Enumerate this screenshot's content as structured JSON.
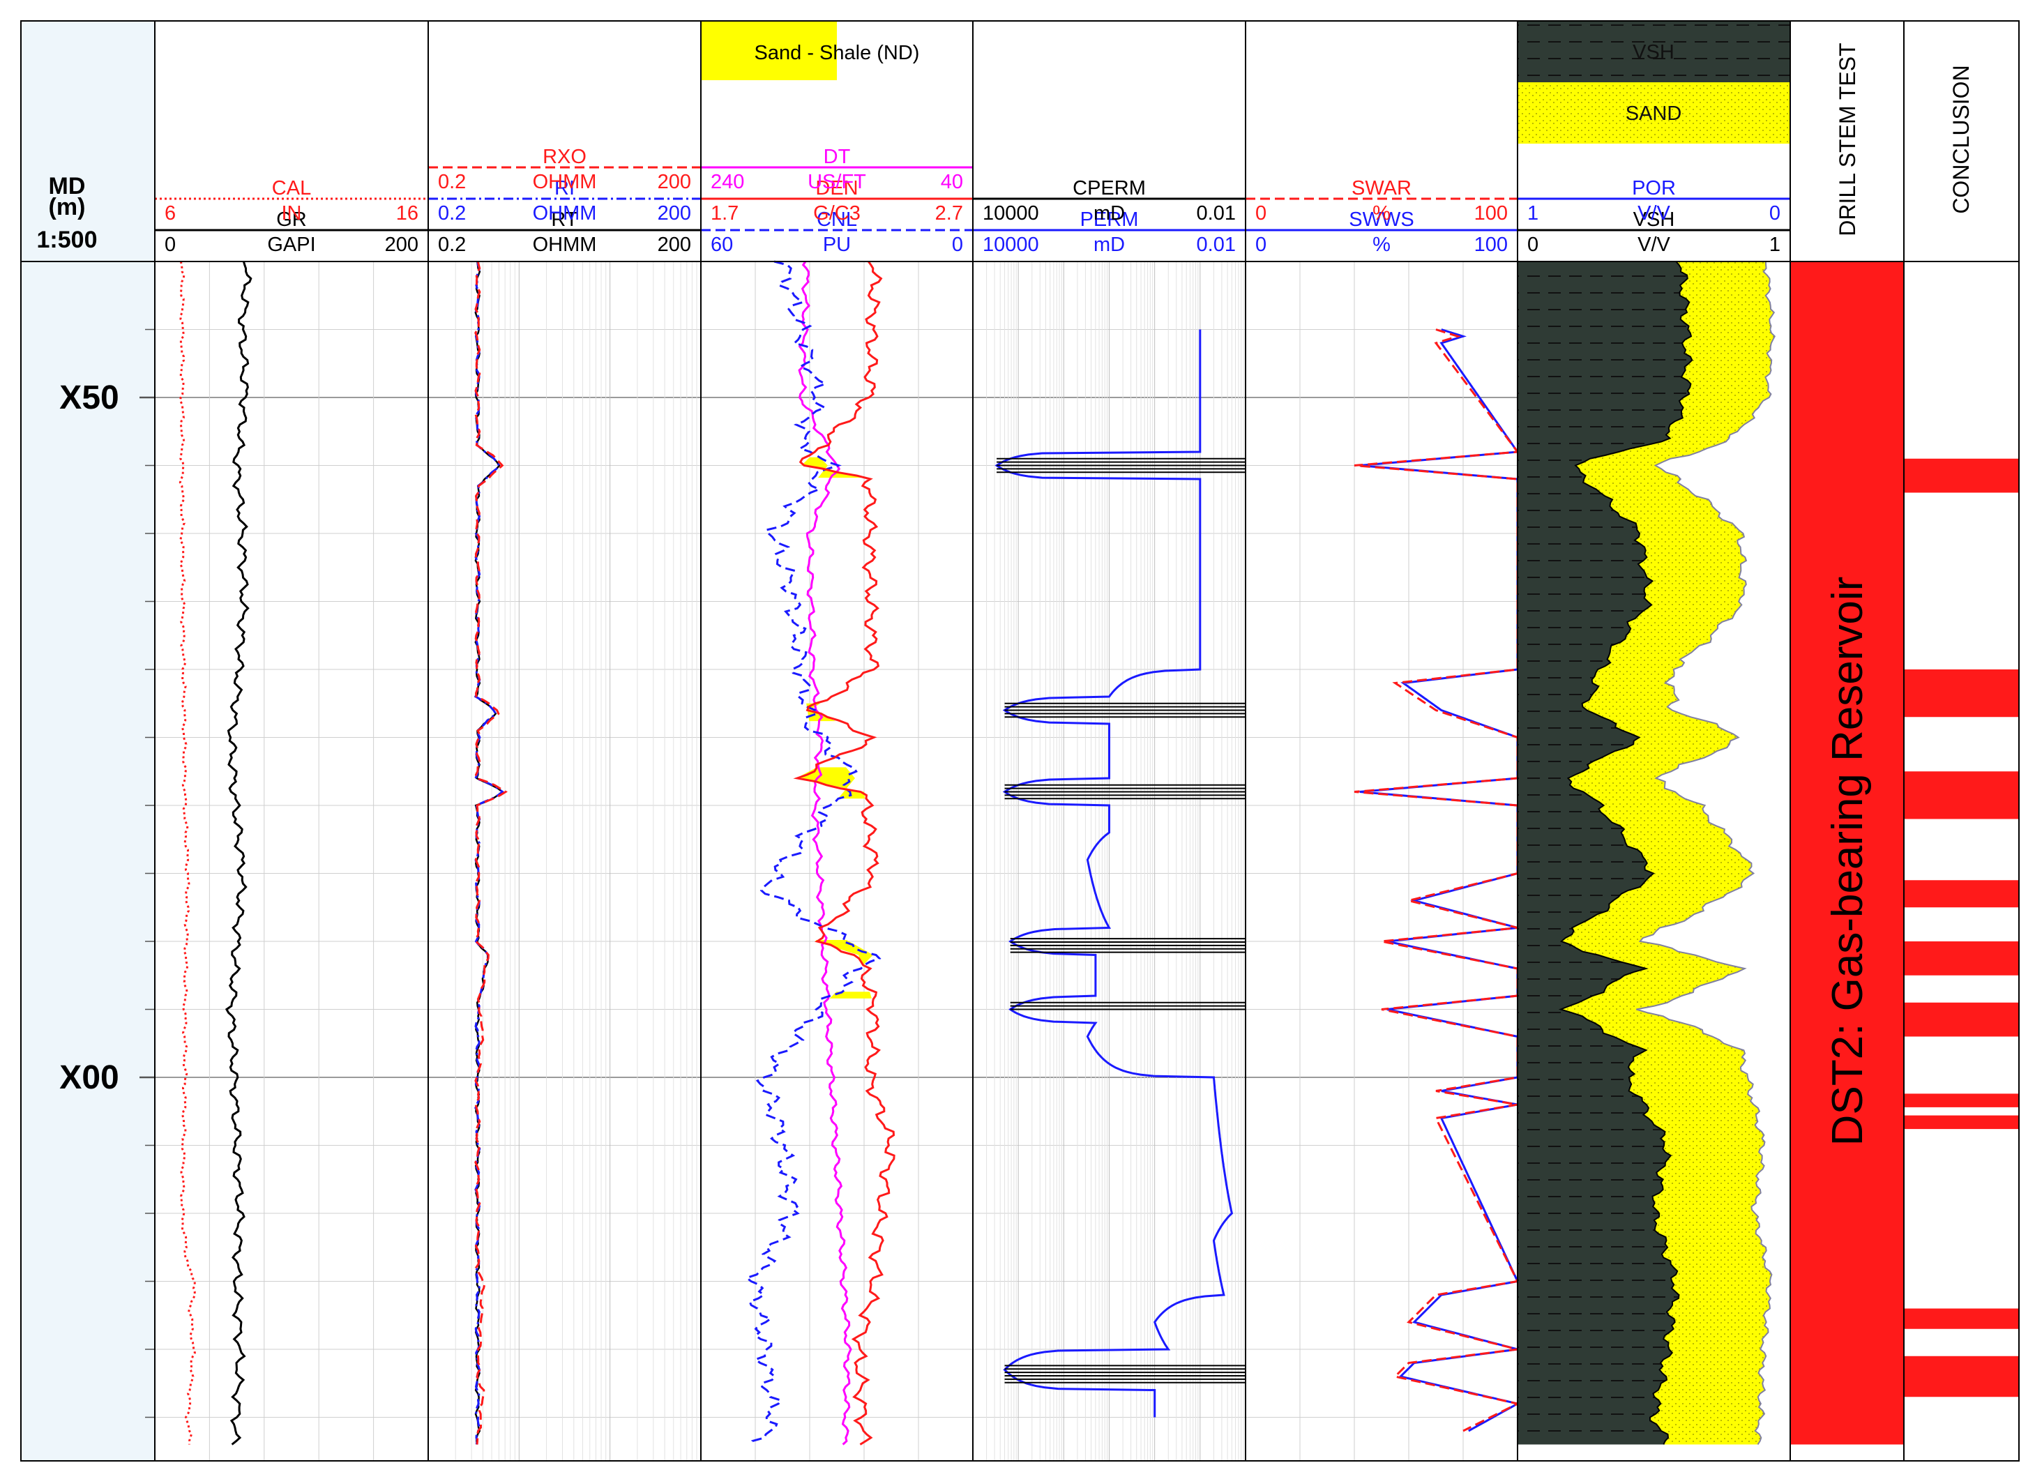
{
  "depth_track": {
    "title": "MD",
    "unit": "(m)",
    "scale": "1:500",
    "labels": [
      "X50",
      "X00"
    ]
  },
  "tracks": {
    "gr_cal": {
      "curves": [
        {
          "name": "CAL",
          "min": "6",
          "unit": "IN",
          "max": "16",
          "color": "#ff1a1a",
          "style": "dotted"
        },
        {
          "name": "GR",
          "min": "0",
          "unit": "GAPI",
          "max": "200",
          "color": "#000000",
          "style": "solid"
        }
      ]
    },
    "resistivity": {
      "curves": [
        {
          "name": "RXO",
          "min": "0.2",
          "unit": "OHMM",
          "max": "200",
          "color": "#ff1a1a",
          "style": "dashed"
        },
        {
          "name": "RI",
          "min": "0.2",
          "unit": "OHMM",
          "max": "200",
          "color": "#1a1aff",
          "style": "dashdot"
        },
        {
          "name": "RT",
          "min": "0.2",
          "unit": "OHMM",
          "max": "200",
          "color": "#000000",
          "style": "solid"
        }
      ]
    },
    "porosity": {
      "fill_label": "Sand - Shale (ND)",
      "curves": [
        {
          "name": "DT",
          "min": "240",
          "unit": "US/FT",
          "max": "40",
          "color": "#ff00ff",
          "style": "solid"
        },
        {
          "name": "DEN",
          "min": "1.7",
          "unit": "G/C3",
          "max": "2.7",
          "color": "#ff1a1a",
          "style": "solid"
        },
        {
          "name": "CNL",
          "min": "60",
          "unit": "PU",
          "max": "0",
          "color": "#1a1aff",
          "style": "dashed"
        }
      ]
    },
    "permeability": {
      "curves": [
        {
          "name": "CPERM",
          "min": "10000",
          "unit": "mD",
          "max": "0.01",
          "color": "#000000",
          "style": "solid"
        },
        {
          "name": "PERM",
          "min": "10000",
          "unit": "mD",
          "max": "0.01",
          "color": "#1a1aff",
          "style": "solid"
        }
      ]
    },
    "saturation": {
      "curves": [
        {
          "name": "SWAR",
          "min": "0",
          "unit": "%",
          "max": "100",
          "color": "#ff1a1a",
          "style": "dashed"
        },
        {
          "name": "SWWS",
          "min": "0",
          "unit": "%",
          "max": "100",
          "color": "#1a1aff",
          "style": "solid"
        }
      ]
    },
    "lithology": {
      "fills": [
        {
          "name": "VSH",
          "color": "#2f3b35"
        },
        {
          "name": "SAND",
          "color": "#ffff00"
        }
      ],
      "curves": [
        {
          "name": "POR",
          "min": "1",
          "unit": "V/V",
          "max": "0",
          "color": "#1a1aff",
          "style": "solid"
        },
        {
          "name": "VSH",
          "min": "0",
          "unit": "V/V",
          "max": "1",
          "color": "#000000",
          "style": "solid"
        }
      ]
    },
    "dst": {
      "header": "DRILL STEM TEST",
      "label": "DST2: Gas-bearing Reservoir",
      "color": "#ff1a1a"
    },
    "conclusion": {
      "header": "CONCLUSION",
      "color": "#ff1a1a"
    }
  },
  "chart_data": {
    "type": "line",
    "depth_range_m": [
      -60,
      27
    ],
    "depth_axis": "md, increasing downward; X50 is 50 m above X00",
    "grid": true,
    "sand_zones": [
      [
        -45.6,
        -44.1
      ],
      [
        -27.5,
        -26.2
      ],
      [
        -22.8,
        -20.5
      ],
      [
        -10.1,
        -8.3
      ],
      [
        -6.3,
        -5.8
      ]
    ],
    "dst_interval": [
      -60,
      27
    ],
    "conclusion_intervals": [
      [
        -45.5,
        -43.0
      ],
      [
        -30.0,
        -26.5
      ],
      [
        -22.5,
        -19.0
      ],
      [
        -14.5,
        -12.5
      ],
      [
        -10.0,
        -7.5
      ],
      [
        -5.5,
        -3.0
      ],
      [
        1.2,
        2.2
      ],
      [
        2.8,
        3.8
      ],
      [
        17.0,
        18.5
      ],
      [
        20.5,
        23.5
      ]
    ],
    "series": [
      {
        "name": "CAL",
        "unit": "IN",
        "depth": [
          -60,
          -40,
          -20,
          -15,
          -5,
          0,
          10,
          14,
          15,
          17,
          20,
          23,
          25,
          27
        ],
        "values": [
          7.0,
          7.0,
          7.1,
          7.2,
          7.1,
          7.1,
          7.0,
          7.2,
          7.5,
          7.3,
          7.4,
          7.3,
          7.2,
          7.3
        ]
      },
      {
        "name": "GR",
        "unit": "GAPI",
        "depth": [
          -60,
          -55,
          -50,
          -45,
          -40,
          -35,
          -28,
          -25,
          -21,
          -15,
          -10,
          -5,
          0,
          5,
          10,
          15,
          20,
          25,
          27
        ],
        "values": [
          68,
          64,
          66,
          60,
          64,
          65,
          60,
          56,
          58,
          64,
          60,
          56,
          58,
          60,
          62,
          60,
          62,
          60,
          58
        ]
      },
      {
        "name": "RXO",
        "unit": "OHMM",
        "depth": [
          -60,
          -46.5,
          -45,
          -43.5,
          -28,
          -26.8,
          -25.5,
          -22,
          -21,
          -20,
          -10,
          -9,
          -5,
          -4,
          0,
          14,
          15,
          22,
          23,
          27
        ],
        "values": [
          0.7,
          0.7,
          1.3,
          0.7,
          0.7,
          1.2,
          0.7,
          0.7,
          1.4,
          0.7,
          0.7,
          0.9,
          0.7,
          0.8,
          0.7,
          0.7,
          0.8,
          0.7,
          0.8,
          0.7
        ]
      },
      {
        "name": "RI",
        "unit": "OHMM",
        "depth": [
          -60,
          -46.5,
          -45,
          -43.5,
          -28,
          -26.8,
          -25.5,
          -22,
          -21,
          -20,
          -10,
          -9,
          -5,
          0,
          27
        ],
        "values": [
          0.7,
          0.7,
          1.2,
          0.7,
          0.7,
          1.1,
          0.7,
          0.7,
          1.3,
          0.7,
          0.7,
          0.9,
          0.7,
          0.7,
          0.7
        ]
      },
      {
        "name": "RT",
        "unit": "OHMM",
        "depth": [
          -60,
          -46.5,
          -45,
          -43.5,
          -28,
          -26.8,
          -25.5,
          -22,
          -21,
          -20,
          -10,
          -9,
          -5,
          0,
          27
        ],
        "values": [
          0.7,
          0.7,
          1.2,
          0.7,
          0.7,
          1.1,
          0.7,
          0.7,
          1.3,
          0.7,
          0.7,
          0.9,
          0.7,
          0.7,
          0.7
        ]
      },
      {
        "name": "DT",
        "unit": "US/FT",
        "depth": [
          -60,
          -50,
          -45,
          -40,
          -30,
          -25,
          -20,
          -10,
          0,
          10,
          20,
          27
        ],
        "values": [
          162,
          166,
          140,
          160,
          158,
          152,
          156,
          150,
          144,
          138,
          132,
          134
        ]
      },
      {
        "name": "DEN",
        "unit": "G/C3",
        "depth": [
          -60,
          -50,
          -45,
          -44,
          -40,
          -30,
          -27,
          -25,
          -22,
          -21,
          -15,
          -10,
          -9,
          -5,
          0,
          5,
          10,
          15,
          20,
          27
        ],
        "values": [
          2.34,
          2.32,
          2.07,
          2.32,
          2.32,
          2.33,
          2.1,
          2.34,
          2.05,
          2.3,
          2.34,
          2.12,
          2.28,
          2.34,
          2.32,
          2.4,
          2.36,
          2.34,
          2.28,
          2.3
        ]
      },
      {
        "name": "CNL",
        "unit": "PU",
        "depth": [
          -60,
          -55,
          -50,
          -47,
          -45,
          -40,
          -36,
          -30,
          -26,
          -22,
          -14,
          -12,
          -9,
          -5,
          0,
          5,
          10,
          15,
          20,
          25,
          27
        ],
        "values": [
          42,
          38,
          34,
          38,
          32,
          44,
          40,
          38,
          36,
          26,
          46,
          38,
          22,
          34,
          46,
          42,
          40,
          48,
          46,
          44,
          47
        ]
      },
      {
        "name": "PERM",
        "unit": "mD",
        "depth": [
          -55,
          -54,
          -46,
          -45,
          -44,
          -38,
          -30,
          -28,
          -27,
          -26,
          -24,
          -22,
          -21,
          -20,
          -18,
          -16,
          -11,
          -10,
          -9,
          -8,
          -6,
          -5,
          -4,
          -3,
          0,
          10,
          12,
          16,
          18,
          20,
          21.5,
          23,
          25
        ],
        "values": [
          0.1,
          0.1,
          0.1,
          3000,
          0.1,
          0.1,
          0.1,
          10,
          2000,
          10,
          10,
          10,
          2000,
          10,
          10,
          30,
          10,
          1500,
          20,
          20,
          20,
          1500,
          20,
          30,
          0.05,
          0.02,
          0.05,
          0.03,
          1,
          0.5,
          2000,
          1,
          1
        ]
      },
      {
        "name": "CPERM",
        "unit": "mD",
        "depth": [
          -45.5,
          -44.5,
          -27.5,
          -26.5,
          -21.5,
          -20.5,
          -10.2,
          -9.2,
          -5.5,
          -4.8,
          21.2,
          22.5
        ],
        "values": [
          3000,
          3000,
          2000,
          2000,
          2000,
          2000,
          1500,
          1500,
          1500,
          1500,
          2000,
          2000
        ]
      },
      {
        "name": "SWAR",
        "unit": "%",
        "depth": [
          -55,
          -54.5,
          -54,
          -46,
          -45,
          -44,
          -30,
          -29,
          -27,
          -25,
          -22,
          -21,
          -20,
          -15,
          -13,
          -11,
          -10,
          -8,
          -6,
          -5,
          -3,
          0,
          1,
          2,
          3,
          15,
          16,
          18,
          20,
          21,
          22,
          24,
          26
        ],
        "values": [
          70,
          78,
          70,
          100,
          40,
          100,
          100,
          55,
          70,
          100,
          100,
          40,
          100,
          100,
          60,
          100,
          50,
          100,
          100,
          50,
          100,
          100,
          70,
          100,
          70,
          100,
          70,
          60,
          100,
          60,
          55,
          100,
          80
        ]
      },
      {
        "name": "SWWS",
        "unit": "%",
        "depth": [
          -55,
          -54.5,
          -54,
          -46,
          -45,
          -44,
          -30,
          -29,
          -27,
          -25,
          -22,
          -21,
          -20,
          -15,
          -13,
          -11,
          -10,
          -8,
          -6,
          -5,
          -3,
          0,
          1,
          2,
          3,
          15,
          16,
          18,
          20,
          21,
          22,
          24,
          26
        ],
        "values": [
          72,
          80,
          72,
          100,
          42,
          100,
          100,
          58,
          72,
          100,
          100,
          42,
          100,
          100,
          62,
          100,
          52,
          100,
          100,
          52,
          100,
          100,
          72,
          100,
          72,
          100,
          72,
          62,
          100,
          62,
          57,
          100,
          82
        ]
      },
      {
        "name": "VSH",
        "unit": "V/V",
        "depth": [
          -60,
          -55,
          -50,
          -47,
          -45,
          -40,
          -35,
          -30,
          -27,
          -25,
          -22,
          -20,
          -15,
          -10,
          -8,
          -5,
          -2,
          0,
          5,
          10,
          15,
          20,
          25,
          27
        ],
        "values": [
          0.6,
          0.62,
          0.62,
          0.55,
          0.2,
          0.45,
          0.48,
          0.3,
          0.25,
          0.45,
          0.18,
          0.3,
          0.5,
          0.15,
          0.45,
          0.18,
          0.45,
          0.4,
          0.55,
          0.5,
          0.58,
          0.55,
          0.5,
          0.55
        ]
      },
      {
        "name": "POR",
        "unit": "V/V",
        "depth": [
          -60,
          -55,
          -50,
          -47,
          -45,
          -40,
          -35,
          -30,
          -27,
          -25,
          -22,
          -20,
          -15,
          -10,
          -8,
          -5,
          -2,
          0,
          5,
          10,
          15,
          20,
          25,
          27
        ],
        "values": [
          0.1,
          0.08,
          0.1,
          0.22,
          0.28,
          0.15,
          0.15,
          0.28,
          0.26,
          0.15,
          0.28,
          0.22,
          0.12,
          0.3,
          0.15,
          0.3,
          0.15,
          0.12,
          0.1,
          0.12,
          0.08,
          0.1,
          0.1,
          0.12
        ]
      }
    ]
  }
}
